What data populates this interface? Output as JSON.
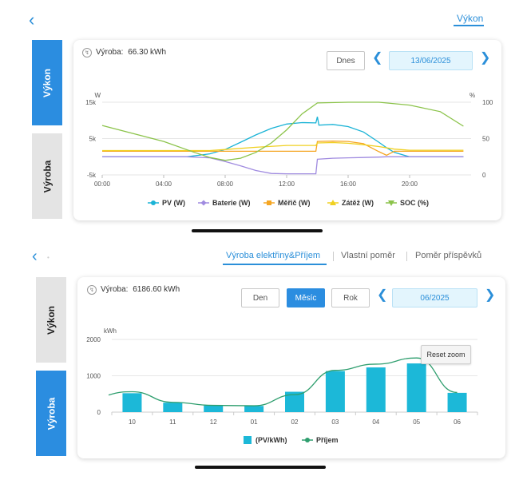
{
  "top": {
    "tab_label": "Výkon"
  },
  "power_card": {
    "side_active": "Výkon",
    "side_inactive": "Výroba",
    "yield_label": "Výroba:",
    "yield_value": "66.30 kWh",
    "today_button": "Dnes",
    "date": "13/06/2025",
    "icon": "power-icon"
  },
  "production_header": {
    "tabs": [
      "Výroba elektřiny&Příjem",
      "Vlastní poměr",
      "Poměr příspěvků"
    ]
  },
  "production_card": {
    "side_inactive": "Výkon",
    "side_active": "Výroba",
    "yield_label": "Výroba:",
    "yield_value": "6186.60 kWh",
    "period_buttons": [
      "Den",
      "Měsíc",
      "Rok"
    ],
    "date": "06/2025",
    "reset_zoom": "Reset zoom",
    "icon": "power-icon"
  },
  "colors": {
    "accent": "#2b8de0",
    "pv": "#1ab3d6",
    "battery": "#a08be0",
    "meter": "#f5a623",
    "load": "#f0d020",
    "soc": "#8bc34a",
    "production_bar": "#1cb8d8",
    "income": "#2e9e6e"
  },
  "chart_data": [
    {
      "type": "line",
      "x_ticks": [
        "00:00",
        "04:00",
        "08:00",
        "12:00",
        "16:00",
        "20:00"
      ],
      "y_left_label": "W",
      "y_left_ticks": [
        "15k",
        "5k",
        "-5k"
      ],
      "y_left_range": [
        -5000,
        15000
      ],
      "y_right_label": "%",
      "y_right_ticks": [
        "100",
        "50",
        "0"
      ],
      "y_right_range": [
        0,
        100
      ],
      "legend_position": "bottom",
      "series": [
        {
          "name": "PV (W)",
          "axis": "left",
          "x_hours": [
            0,
            4,
            5.5,
            7,
            8,
            9,
            10,
            11,
            12,
            13,
            13.9,
            14,
            14.1,
            15,
            16,
            17,
            18,
            18.5,
            19,
            20,
            21,
            22,
            23.5
          ],
          "values": [
            0,
            0,
            0,
            800,
            2000,
            4000,
            6000,
            7800,
            9000,
            9400,
            9300,
            11000,
            8700,
            8900,
            8300,
            6800,
            4000,
            2500,
            1200,
            0,
            0,
            0,
            0
          ]
        },
        {
          "name": "Baterie (W)",
          "axis": "left",
          "x_hours": [
            0,
            4,
            5.5,
            7,
            8,
            9,
            10,
            11,
            12,
            13,
            13.9,
            14,
            15,
            16,
            17,
            18,
            18.5,
            19,
            20,
            22,
            23.5
          ],
          "values": [
            0,
            0,
            0,
            -300,
            -1300,
            -2500,
            -3800,
            -4600,
            -4700,
            -4700,
            -4700,
            -700,
            -400,
            -300,
            -200,
            -100,
            0,
            0,
            0,
            0,
            0
          ]
        },
        {
          "name": "Měřič (W)",
          "axis": "left",
          "x_hours": [
            0,
            5.5,
            7,
            8,
            10,
            12,
            13.9,
            14,
            15,
            16,
            17,
            18,
            18.5,
            19,
            20,
            23.5
          ],
          "values": [
            1500,
            1500,
            1500,
            1500,
            1500,
            1500,
            1500,
            4200,
            4300,
            4200,
            3600,
            1400,
            400,
            1500,
            1500,
            1500
          ]
        },
        {
          "name": "Zátěž (W)",
          "axis": "left",
          "x_hours": [
            0,
            5.5,
            7,
            8,
            10,
            12,
            13.9,
            14,
            15,
            16,
            17,
            18,
            19,
            20,
            23.5
          ],
          "values": [
            1700,
            1700,
            1700,
            2000,
            2600,
            3100,
            3100,
            3800,
            3900,
            3700,
            3300,
            2800,
            2100,
            1800,
            1800
          ]
        },
        {
          "name": "SOC (%)",
          "axis": "right",
          "x_hours": [
            0,
            2,
            4,
            6,
            7,
            8,
            9,
            10,
            11,
            12,
            13,
            14,
            16,
            18,
            20,
            22,
            23.5
          ],
          "values": [
            68,
            57,
            46,
            31,
            24,
            20,
            23,
            31,
            44,
            62,
            84,
            99,
            100,
            100,
            96,
            87,
            67
          ]
        }
      ]
    },
    {
      "type": "bar",
      "categories": [
        "10",
        "11",
        "12",
        "01",
        "02",
        "03",
        "04",
        "05",
        "06"
      ],
      "ylabel": "kWh",
      "y_ticks": [
        "2000",
        "1000",
        "0"
      ],
      "ylim": [
        0,
        2000
      ],
      "legend_position": "bottom",
      "series": [
        {
          "name": "(PV/kWh)",
          "type": "bar",
          "values": [
            520,
            260,
            180,
            170,
            560,
            1130,
            1230,
            1340,
            530
          ]
        },
        {
          "name": "Příjem",
          "type": "line",
          "values": [
            560,
            270,
            185,
            175,
            480,
            1150,
            1320,
            1490,
            540
          ]
        }
      ]
    }
  ]
}
